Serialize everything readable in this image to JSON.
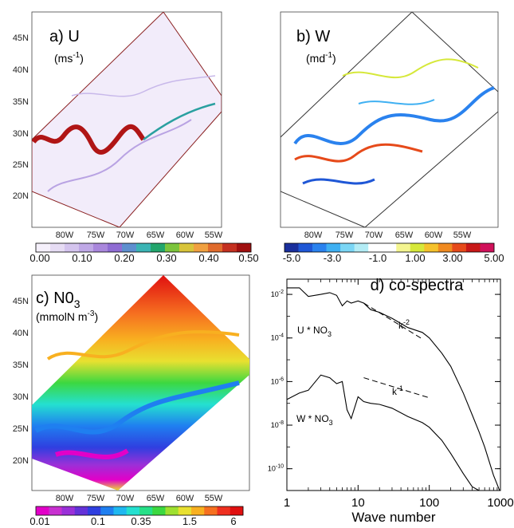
{
  "figure": {
    "panels": {
      "a": {
        "title": "a)  U",
        "unit": "(ms",
        "unit_sup": "-1",
        "unit_close": ")"
      },
      "b": {
        "title": "b)  W",
        "unit": "(md",
        "unit_sup": "-1",
        "unit_close": ")"
      },
      "c": {
        "title": "c) N0",
        "title_sub": "3",
        "unit": "(mmolN m",
        "unit_sup": "-3",
        "unit_close": ")"
      },
      "d": {
        "title": "d) co-spectra"
      }
    },
    "map": {
      "lat_ticks": [
        "45N",
        "40N",
        "35N",
        "30N",
        "25N",
        "20N"
      ],
      "lon_ticks": [
        "80W",
        "75W",
        "70W",
        "65W",
        "60W",
        "55W"
      ]
    },
    "colorbars": {
      "a": {
        "labels": [
          "0.00",
          "0.10",
          "0.20",
          "0.30",
          "0.40",
          "0.50"
        ],
        "colors": [
          "#f5f0fb",
          "#e6dcf4",
          "#d4c4ee",
          "#bfa8e6",
          "#a987dc",
          "#8f6cd3",
          "#5e8fcf",
          "#3bb4b4",
          "#22a56c",
          "#7cc43c",
          "#d8c43a",
          "#f0a040",
          "#e06b2c",
          "#c43020",
          "#a01010"
        ]
      },
      "b": {
        "labels": [
          "-5.0",
          "-3.0",
          "-1.0",
          "1.00",
          "3.00",
          "5.00"
        ],
        "colors": [
          "#1a2f9c",
          "#1f57d6",
          "#2a82ee",
          "#3fb0f2",
          "#7bd6f5",
          "#b3ecf5",
          "#ffffff",
          "#ffffff",
          "#f4f590",
          "#d6e83a",
          "#f5c22c",
          "#f08a20",
          "#e64a1a",
          "#c81818",
          "#d0105a"
        ]
      },
      "c": {
        "labels": [
          "0.01",
          "0.1",
          "0.35",
          "1.5",
          "6"
        ],
        "colors": [
          "#e200c8",
          "#c830d0",
          "#9a30d8",
          "#6432d8",
          "#2f3fe0",
          "#1f7ff0",
          "#1fb8f0",
          "#24e0d0",
          "#26e088",
          "#3cd840",
          "#9ee030",
          "#e8e030",
          "#f8b020",
          "#f67020",
          "#ef3020",
          "#e01010"
        ]
      }
    },
    "chart_data": {
      "type": "line",
      "title": "d) co-spectra",
      "xlabel": "Wave number",
      "ylabel": "",
      "xscale": "log",
      "yscale": "log",
      "xlim": [
        1,
        1000
      ],
      "ylim": [
        1e-11,
        0.05
      ],
      "x_ticks": [
        "1",
        "10",
        "100",
        "1000"
      ],
      "y_ticks": [
        {
          "base": "10",
          "exp": "-2",
          "value": 0.01
        },
        {
          "base": "10",
          "exp": "-4",
          "value": 0.0001
        },
        {
          "base": "10",
          "exp": "-6",
          "value": 1e-06
        },
        {
          "base": "10",
          "exp": "-8",
          "value": 1e-08
        },
        {
          "base": "10",
          "exp": "-10",
          "value": 1e-10
        }
      ],
      "series": [
        {
          "label": "U * NO",
          "label_sub": "3",
          "x": [
            1,
            1.5,
            2,
            3,
            4,
            5,
            6,
            7,
            8,
            10,
            12,
            15,
            20,
            30,
            50,
            80,
            100,
            150,
            200,
            300,
            400,
            500,
            600,
            800,
            1000
          ],
          "y": [
            0.02,
            0.02,
            0.008,
            0.01,
            0.012,
            0.009,
            0.003,
            0.005,
            0.004,
            0.005,
            0.004,
            0.002,
            0.0015,
            0.0008,
            0.0003,
            0.00018,
            0.0001,
            2e-05,
            5e-06,
            3e-07,
            3e-08,
            5e-09,
            1e-09,
            5e-11,
            8e-12
          ]
        },
        {
          "label": "W * NO",
          "label_sub": "3",
          "x": [
            1,
            1.5,
            2,
            3,
            4,
            5,
            6,
            7,
            8,
            10,
            12,
            15,
            20,
            30,
            50,
            80,
            100,
            150,
            200,
            300,
            400,
            500,
            600,
            800,
            1000
          ],
          "y": [
            1.5e-07,
            3e-07,
            4e-07,
            2e-06,
            1.5e-06,
            8e-07,
            1e-06,
            5e-08,
            2e-08,
            2e-07,
            1.2e-07,
            1e-07,
            9e-08,
            6e-08,
            2.5e-08,
            1.3e-08,
            8e-09,
            2e-09,
            5e-10,
            6e-11,
            1.5e-11,
            1e-11,
            1e-11,
            1e-11,
            1e-11
          ]
        }
      ],
      "reference_lines": [
        {
          "label": "k",
          "label_sup": "-2",
          "x": [
            12,
            80
          ],
          "y": [
            0.004,
            9e-05
          ]
        },
        {
          "label": "k",
          "label_sup": "-1",
          "x": [
            12,
            100
          ],
          "y": [
            1.5e-06,
            1.8e-07
          ]
        }
      ]
    }
  }
}
